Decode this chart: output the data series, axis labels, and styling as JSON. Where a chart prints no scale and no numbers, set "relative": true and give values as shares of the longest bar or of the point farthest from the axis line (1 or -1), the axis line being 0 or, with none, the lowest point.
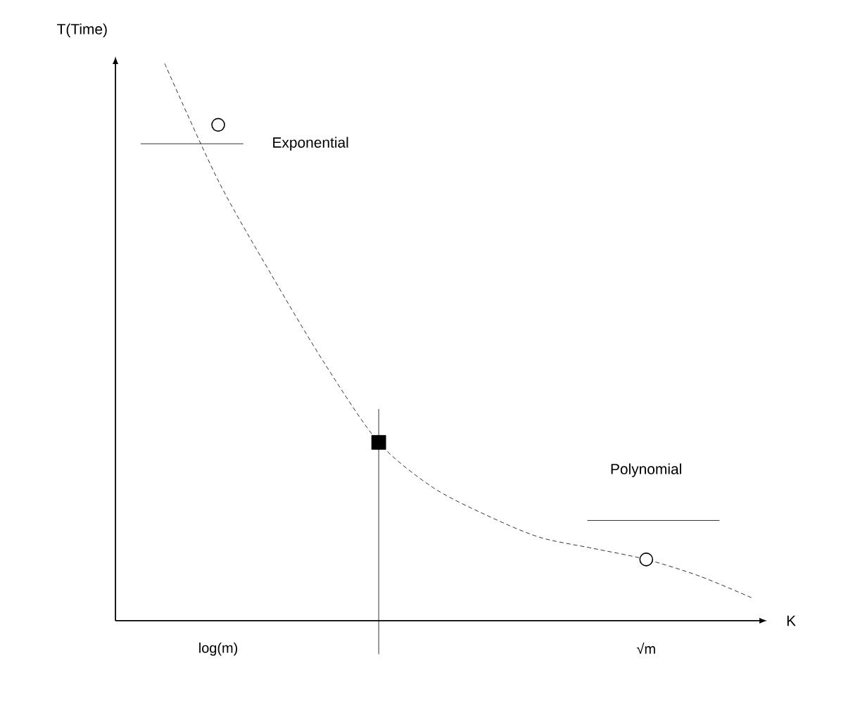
{
  "chart_data": {
    "type": "line",
    "relative": true,
    "xlabel": "K",
    "ylabel": "T(Time)",
    "categories": [
      null,
      "log(m)",
      null,
      null,
      null,
      null,
      null,
      null,
      null,
      "√m",
      null,
      null
    ],
    "series": [
      {
        "color": "#000000",
        "line_style": "dashed",
        "marker": "none",
        "values": [
          1,
          0.79,
          0.62,
          0.46,
          0.32,
          0.24,
          0.19,
          0.15,
          0.13,
          0.11,
          0.08,
          0.04
        ]
      },
      {
        "type": "scatter",
        "color": "#000000",
        "marker": "circle",
        "values": [
          null,
          0.89,
          null,
          null,
          null,
          null,
          null,
          null,
          null,
          0.11,
          null,
          null
        ]
      },
      {
        "type": "scatter",
        "color": "#000000",
        "marker": "square",
        "values": [
          null,
          null,
          null,
          null,
          0.32,
          null,
          null,
          null,
          null,
          null,
          null,
          null
        ]
      }
    ],
    "annotations": [
      "Exponential",
      "Polynomial"
    ]
  }
}
